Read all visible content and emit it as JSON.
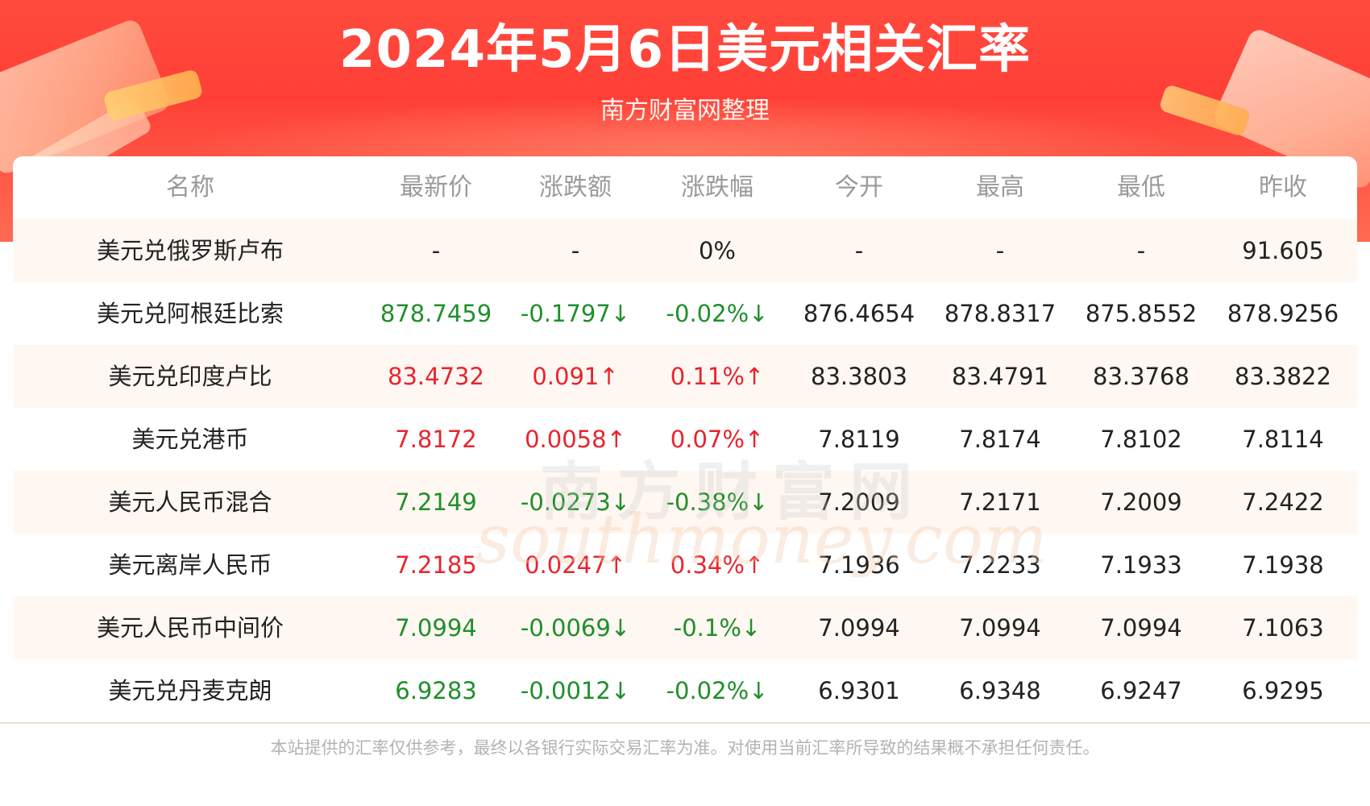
{
  "header": {
    "title": "2024年5月6日美元相关汇率",
    "subtitle": "南方财富网整理"
  },
  "table": {
    "columns": [
      "名称",
      "最新价",
      "涨跌额",
      "涨跌幅",
      "今开",
      "最高",
      "最低",
      "昨收"
    ],
    "rows": [
      {
        "name": "美元兑俄罗斯卢布",
        "latest": "-",
        "change": "-",
        "pct": "0%",
        "open": "-",
        "high": "-",
        "low": "-",
        "prev": "91.605",
        "trend": "flat"
      },
      {
        "name": "美元兑阿根廷比索",
        "latest": "878.7459",
        "change": "-0.1797↓",
        "pct": "-0.02%↓",
        "open": "876.4654",
        "high": "878.8317",
        "low": "875.8552",
        "prev": "878.9256",
        "trend": "down"
      },
      {
        "name": "美元兑印度卢比",
        "latest": "83.4732",
        "change": "0.091↑",
        "pct": "0.11%↑",
        "open": "83.3803",
        "high": "83.4791",
        "low": "83.3768",
        "prev": "83.3822",
        "trend": "up"
      },
      {
        "name": "美元兑港币",
        "latest": "7.8172",
        "change": "0.0058↑",
        "pct": "0.07%↑",
        "open": "7.8119",
        "high": "7.8174",
        "low": "7.8102",
        "prev": "7.8114",
        "trend": "up"
      },
      {
        "name": "美元人民币混合",
        "latest": "7.2149",
        "change": "-0.0273↓",
        "pct": "-0.38%↓",
        "open": "7.2009",
        "high": "7.2171",
        "low": "7.2009",
        "prev": "7.2422",
        "trend": "down"
      },
      {
        "name": "美元离岸人民币",
        "latest": "7.2185",
        "change": "0.0247↑",
        "pct": "0.34%↑",
        "open": "7.1936",
        "high": "7.2233",
        "low": "7.1933",
        "prev": "7.1938",
        "trend": "up"
      },
      {
        "name": "美元人民币中间价",
        "latest": "7.0994",
        "change": "-0.0069↓",
        "pct": "-0.1%↓",
        "open": "7.0994",
        "high": "7.0994",
        "low": "7.0994",
        "prev": "7.1063",
        "trend": "down"
      },
      {
        "name": "美元兑丹麦克朗",
        "latest": "6.9283",
        "change": "-0.0012↓",
        "pct": "-0.02%↓",
        "open": "6.9301",
        "high": "6.9348",
        "low": "6.9247",
        "prev": "6.9295",
        "trend": "down"
      }
    ]
  },
  "colors": {
    "up": "#e8242e",
    "down": "#1f8f2a",
    "banner": "#ff4b3e"
  },
  "watermark": {
    "cn": "南方财富网",
    "en": "southmoney.com"
  },
  "footer": {
    "disclaimer": "本站提供的汇率仅供参考，最终以各银行实际交易汇率为准。对使用当前汇率所导致的结果概不承担任何责任。"
  }
}
